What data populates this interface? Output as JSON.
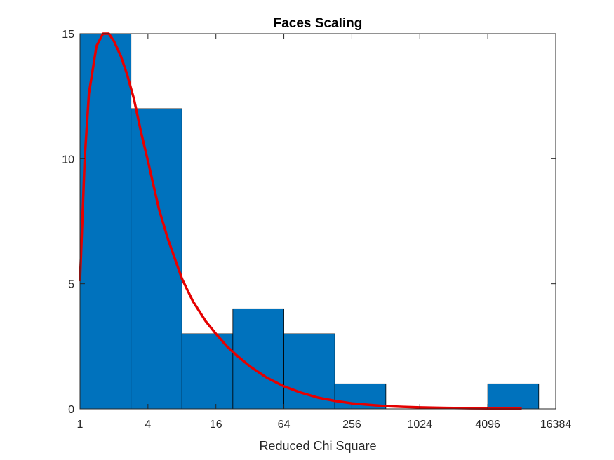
{
  "chart_data": {
    "type": "bar",
    "title": "Faces Scaling",
    "xlabel": "Reduced Chi Square",
    "ylabel": "",
    "x_scale": "log2",
    "xlim": [
      1,
      16384
    ],
    "ylim": [
      0,
      15
    ],
    "x_ticks": [
      1,
      4,
      16,
      64,
      256,
      1024,
      4096,
      16384
    ],
    "x_tick_labels": [
      "1",
      "4",
      "16",
      "64",
      "256",
      "1024",
      "4096",
      "16384"
    ],
    "y_ticks": [
      0,
      5,
      10,
      15
    ],
    "y_tick_labels": [
      "0",
      "5",
      "10",
      "15"
    ],
    "grid": false,
    "bins": [
      {
        "from": 1,
        "to": 2.83,
        "count": 15
      },
      {
        "from": 2.83,
        "to": 8,
        "count": 12
      },
      {
        "from": 8,
        "to": 22.6,
        "count": 3
      },
      {
        "from": 22.6,
        "to": 64,
        "count": 4
      },
      {
        "from": 64,
        "to": 181,
        "count": 3
      },
      {
        "from": 181,
        "to": 512,
        "count": 1
      },
      {
        "from": 512,
        "to": 1448,
        "count": 0
      },
      {
        "from": 1448,
        "to": 4096,
        "count": 0
      },
      {
        "from": 4096,
        "to": 11585,
        "count": 1
      }
    ],
    "fit_curve": {
      "x": [
        1,
        1.1,
        1.2,
        1.4,
        1.6,
        1.8,
        2,
        2.3,
        2.6,
        3,
        3.5,
        4,
        5,
        6,
        8,
        10,
        13,
        16,
        20,
        25,
        32,
        45,
        64,
        90,
        128,
        181,
        256,
        362,
        512,
        724,
        1024,
        1448,
        2048,
        2896,
        4096,
        5793,
        8192
      ],
      "y": [
        5.1,
        10.0,
        12.6,
        14.5,
        15.0,
        15.0,
        14.7,
        14.1,
        13.4,
        12.4,
        11.0,
        9.9,
        8.0,
        6.8,
        5.2,
        4.3,
        3.5,
        3.0,
        2.5,
        2.1,
        1.7,
        1.25,
        0.9,
        0.65,
        0.45,
        0.32,
        0.22,
        0.16,
        0.11,
        0.08,
        0.06,
        0.045,
        0.035,
        0.025,
        0.02,
        0.015,
        0.01
      ]
    },
    "colors": {
      "bar_fill": "#0072BD",
      "bar_edge": "#000000",
      "fit_line": "#E50000",
      "axes": "#262626"
    }
  }
}
